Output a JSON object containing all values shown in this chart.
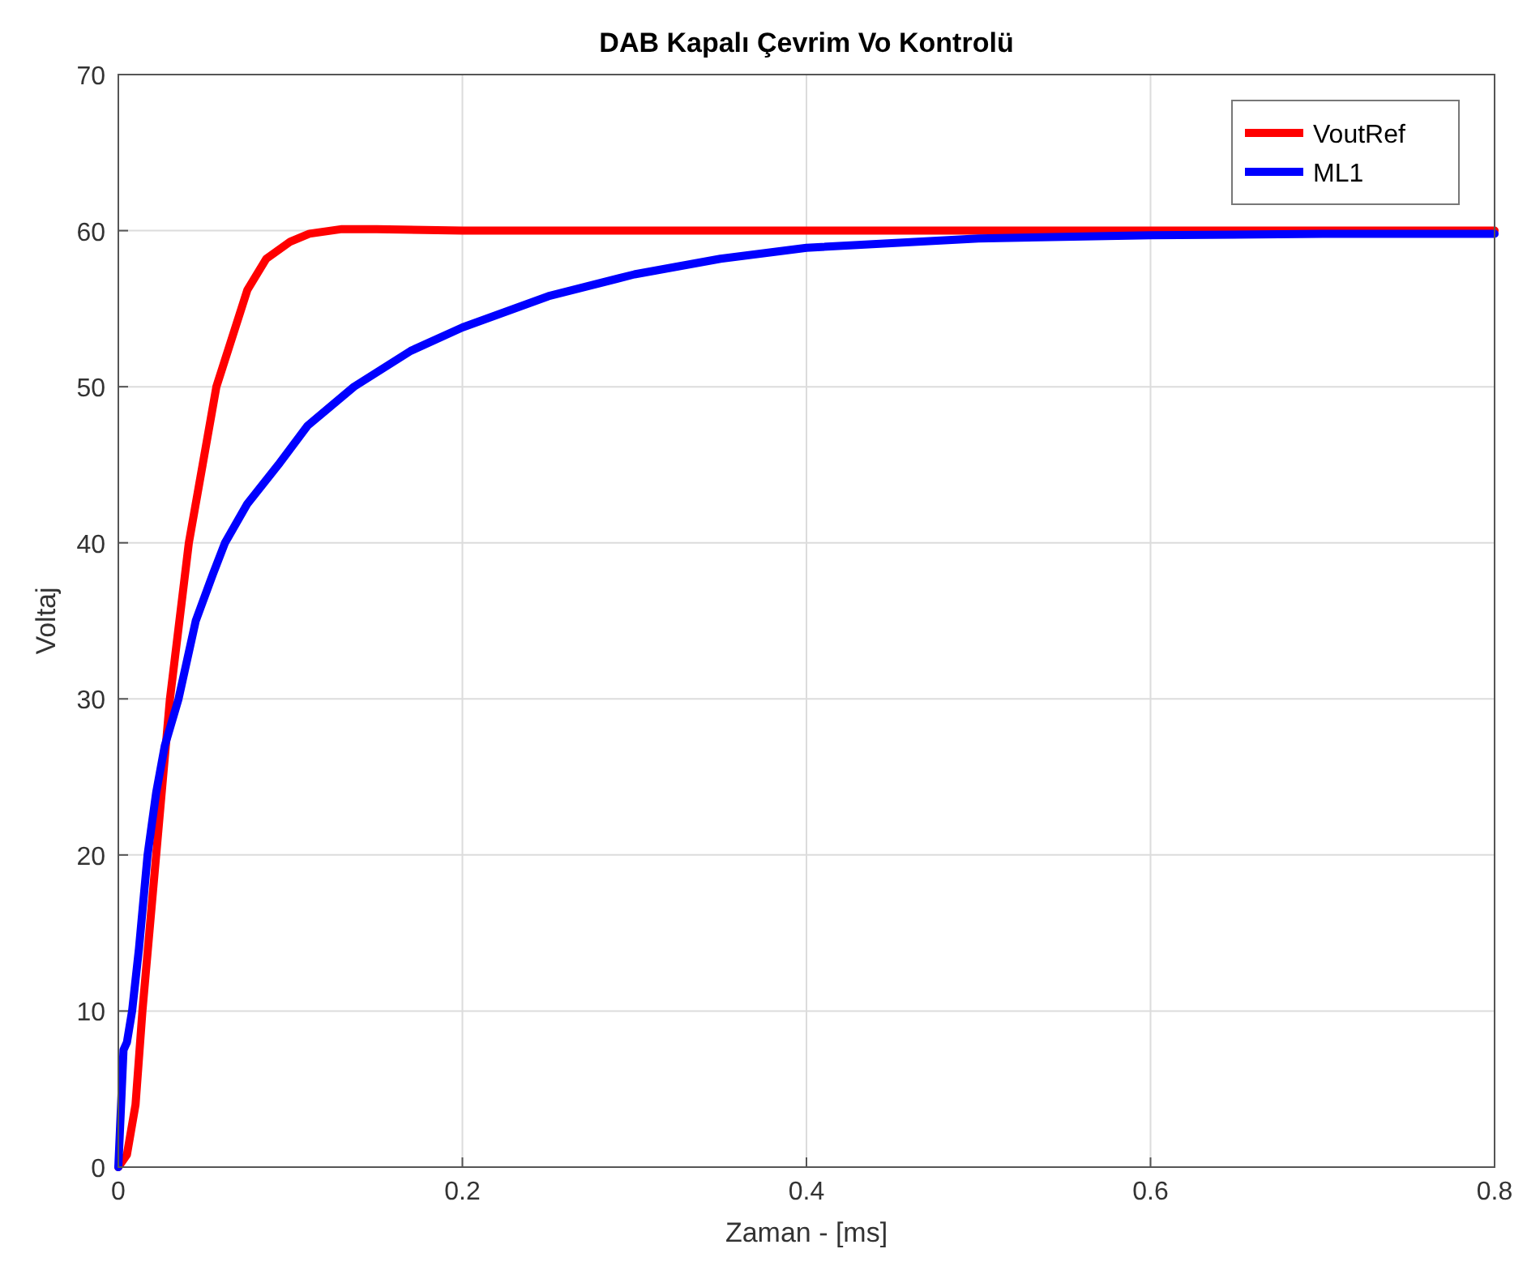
{
  "chart_data": {
    "type": "line",
    "title": "DAB Kapalı Çevrim Vo Kontrolü",
    "xlabel": "Zaman - [ms]",
    "ylabel": "Voltaj",
    "xlim": [
      0,
      0.8
    ],
    "ylim": [
      0,
      70
    ],
    "xticks": [
      0,
      0.2,
      0.4,
      0.6,
      0.8
    ],
    "yticks": [
      0,
      10,
      20,
      30,
      40,
      50,
      60,
      70
    ],
    "grid": true,
    "legend": "top right",
    "line_style": "solid",
    "series": [
      {
        "name": "VoutRef",
        "color": "#ff0000",
        "x": [
          0,
          0.005,
          0.01,
          0.014,
          0.022,
          0.03,
          0.041,
          0.057,
          0.075,
          0.086,
          0.1,
          0.111,
          0.13,
          0.15,
          0.2,
          0.3,
          0.4,
          0.5,
          0.6,
          0.7,
          0.8
        ],
        "values": [
          0,
          0.8,
          4,
          10,
          20,
          30,
          40,
          50,
          56.2,
          58.2,
          59.3,
          59.8,
          60.1,
          60.1,
          60,
          60,
          60,
          60,
          60,
          60,
          60
        ]
      },
      {
        "name": "ML1",
        "color": "#0000ff",
        "x": [
          0,
          0.003,
          0.005,
          0.008,
          0.012,
          0.017,
          0.022,
          0.027,
          0.035,
          0.045,
          0.055,
          0.062,
          0.075,
          0.093,
          0.11,
          0.137,
          0.17,
          0.2,
          0.25,
          0.3,
          0.35,
          0.4,
          0.5,
          0.6,
          0.7,
          0.8
        ],
        "values": [
          0,
          7.5,
          8,
          10,
          14,
          20,
          24,
          27,
          30,
          35,
          38,
          40,
          42.5,
          45,
          47.5,
          50,
          52.3,
          53.8,
          55.8,
          57.2,
          58.2,
          58.9,
          59.5,
          59.7,
          59.8,
          59.8
        ]
      }
    ]
  }
}
